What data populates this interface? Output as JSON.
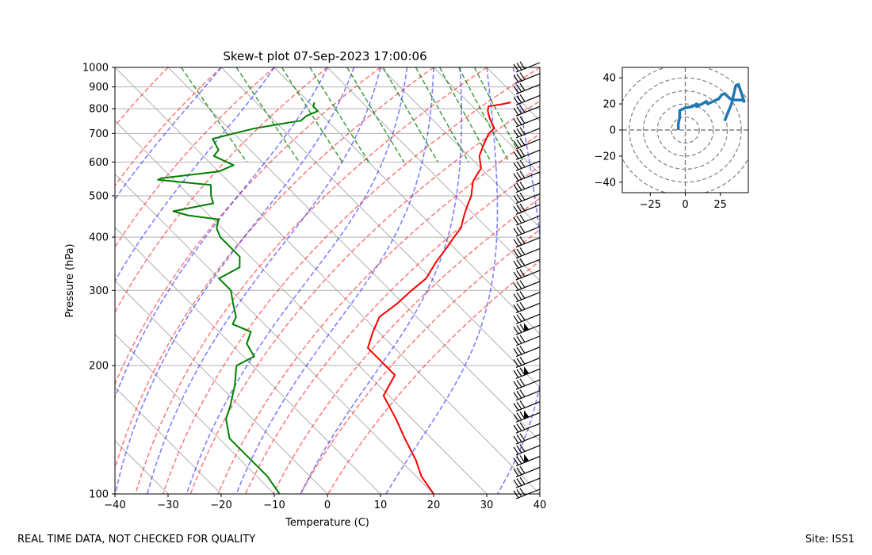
{
  "chart_data": [
    {
      "type": "line",
      "title": "Skew-t plot 07-Sep-2023 17:00:06",
      "xlabel": "Temperature (C)",
      "ylabel": "Pressure (hPa)",
      "xlim": [
        -40,
        40
      ],
      "ylim": [
        1000,
        100
      ],
      "yscale": "log",
      "skew_deg_per_decade": 80,
      "x_ticks": [
        -40,
        -30,
        -20,
        -10,
        0,
        10,
        20,
        30,
        40
      ],
      "x_tick_labels": [
        "−40",
        "−30",
        "−20",
        "−10",
        "0",
        "10",
        "20",
        "30",
        "40"
      ],
      "y_ticks": [
        100,
        200,
        300,
        400,
        500,
        600,
        700,
        800,
        900,
        1000
      ],
      "y_tick_labels": [
        "100",
        "200",
        "300",
        "400",
        "500",
        "600",
        "700",
        "800",
        "900",
        "1000"
      ],
      "isotherms_C": [
        -120,
        -110,
        -100,
        -90,
        -80,
        -70,
        -60,
        -50,
        -40,
        -30,
        -20,
        -10,
        0,
        10,
        20,
        30,
        40
      ],
      "dry_adiabats_C": [
        -30,
        -20,
        -10,
        0,
        10,
        20,
        30,
        40,
        50,
        60,
        70,
        80,
        90,
        100
      ],
      "moist_adiabats_C": [
        -20,
        -10,
        0,
        5,
        10,
        15,
        20,
        25,
        30,
        35
      ],
      "mixing_ratios_gkg": [
        0.4,
        1,
        2,
        3,
        5,
        8,
        12,
        16,
        20,
        24
      ],
      "series": [
        {
          "name": "Temperature",
          "color": "#ff0000",
          "pressure": [
            828,
            820,
            810,
            790,
            760,
            720,
            700,
            660,
            620,
            580,
            560,
            540,
            500,
            470,
            450,
            420,
            400,
            380,
            350,
            320,
            300,
            280,
            260,
            240,
            220,
            205,
            200,
            190,
            170,
            150,
            135,
            120,
            110,
            100
          ],
          "temp": [
            28,
            26,
            23,
            22,
            21,
            20,
            18,
            15,
            12,
            10,
            8,
            6,
            3,
            0,
            -2,
            -5,
            -8,
            -11,
            -16,
            -21,
            -26,
            -31,
            -37,
            -41,
            -45,
            -45,
            -45,
            -45,
            -51,
            -53,
            -55,
            -57,
            -59,
            -60
          ]
        },
        {
          "name": "Dewpoint",
          "color": "#008000",
          "pressure": [
            828,
            810,
            790,
            770,
            750,
            735,
            720,
            700,
            680,
            640,
            620,
            590,
            570,
            550,
            545,
            530,
            500,
            480,
            460,
            450,
            440,
            420,
            400,
            380,
            360,
            340,
            320,
            300,
            280,
            260,
            250,
            240,
            225,
            210,
            200,
            195,
            180,
            160,
            150,
            135,
            120,
            110,
            100
          ],
          "temp": [
            -9,
            -10,
            -10,
            -13,
            -15,
            -20,
            -25,
            -30,
            -35,
            -36,
            -38,
            -36,
            -40,
            -52,
            -53,
            -44,
            -46,
            -47,
            -56,
            -54,
            -49,
            -51,
            -52,
            -52,
            -52,
            -54,
            -60,
            -60,
            -62,
            -64,
            -66,
            -64,
            -67,
            -68,
            -73,
            -74,
            -77,
            -82,
            -85,
            -88,
            -88,
            -88,
            -89
          ]
        }
      ],
      "wind_barbs": "staff of barbs on right edge from 1000 to 100 hPa",
      "hodograph": {
        "type": "line",
        "xlim": [
          -45,
          45
        ],
        "ylim": [
          -48,
          48
        ],
        "x_ticks": [
          -25,
          0,
          25
        ],
        "x_tick_labels": [
          "−25",
          "0",
          "25"
        ],
        "y_ticks": [
          -40,
          -20,
          0,
          20,
          40
        ],
        "y_tick_labels": [
          "−40",
          "−20",
          "0",
          "20",
          "40"
        ],
        "ring_radii": [
          10,
          20,
          30,
          40,
          50
        ],
        "color": "#1f77b4",
        "u": [
          -5,
          -5,
          -4,
          -4,
          0,
          5,
          8,
          10,
          8,
          12,
          15,
          16,
          20,
          24,
          26,
          28,
          30,
          32,
          35,
          40,
          42,
          38,
          36,
          33,
          28
        ],
        "v": [
          0,
          5,
          10,
          15,
          17,
          18,
          20,
          19,
          18,
          20,
          22,
          20,
          22,
          24,
          27,
          28,
          26,
          24,
          23,
          23,
          22,
          35,
          34,
          20,
          7
        ]
      }
    }
  ],
  "footer": {
    "left": "REAL TIME DATA, NOT CHECKED FOR QUALITY",
    "right": "Site: ISS1"
  }
}
